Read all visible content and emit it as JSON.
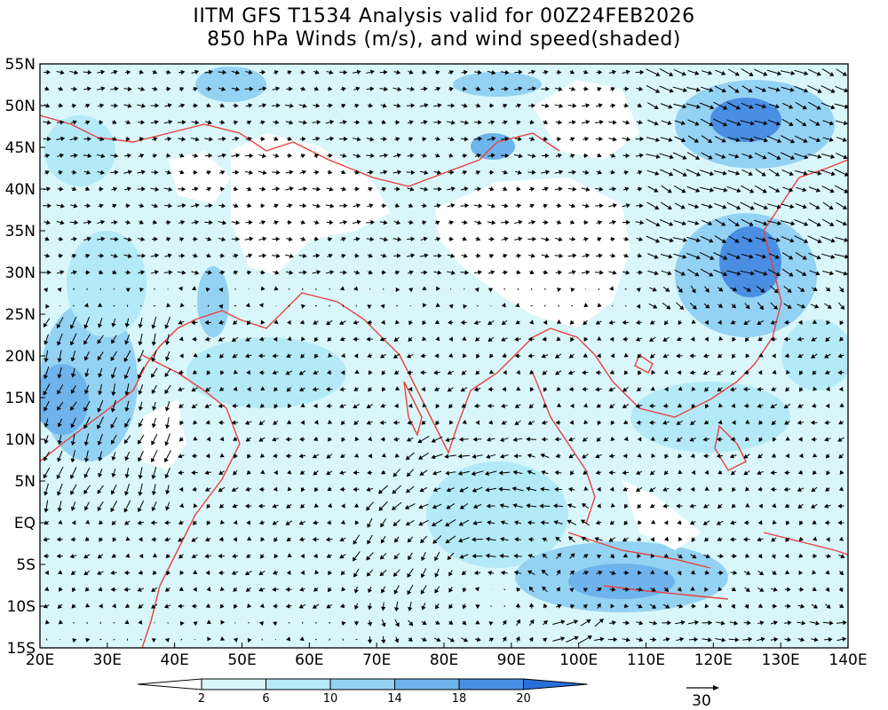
{
  "title": {
    "line1": "IITM GFS T1534 Analysis valid for 00Z24FEB2026",
    "line2": "850 hPa Winds (m/s), and wind speed(shaded)"
  },
  "map": {
    "lon_range": [
      20,
      140
    ],
    "lat_range": [
      -15,
      55
    ],
    "lon_ticks": [
      "20E",
      "30E",
      "40E",
      "50E",
      "60E",
      "70E",
      "80E",
      "90E",
      "100E",
      "110E",
      "120E",
      "130E",
      "140E"
    ],
    "lat_ticks": [
      "55N",
      "50N",
      "45N",
      "40N",
      "35N",
      "30N",
      "25N",
      "20N",
      "15N",
      "10N",
      "5N",
      "EQ",
      "5S",
      "10S",
      "15S"
    ],
    "coastline_color": "#e8413c"
  },
  "colorbar": {
    "levels": [
      "2",
      "6",
      "10",
      "14",
      "18",
      "20"
    ],
    "colors": [
      "#ffffff",
      "#d9f7fb",
      "#b4e9f7",
      "#94d2f3",
      "#6eb3ec",
      "#4a8ee3",
      "#2a6edb"
    ]
  },
  "reference_vector": {
    "label": "30"
  }
}
